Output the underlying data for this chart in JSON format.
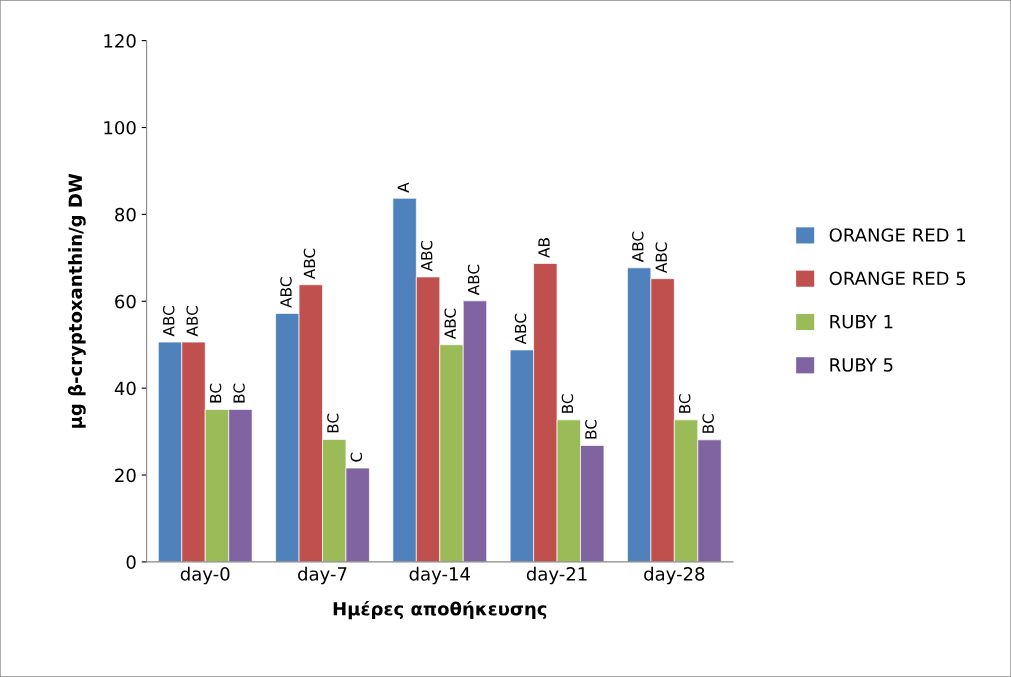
{
  "chart_data": {
    "type": "bar",
    "xlabel": "Ημέρες αποθήκευσης",
    "ylabel": "μg β-cryptoxanthin/g DW",
    "categories": [
      "day-0",
      "day-7",
      "day-14",
      "day-21",
      "day-28"
    ],
    "series": [
      {
        "name": "ORANGE RED 1",
        "color": "#4f81bd",
        "values": [
          50.6,
          57.2,
          83.7,
          48.8,
          67.7
        ],
        "value_labels": [
          "ABC",
          "ABC",
          "A",
          "ABC",
          "ABC"
        ]
      },
      {
        "name": "ORANGE RED 5",
        "color": "#c0504d",
        "values": [
          50.6,
          63.8,
          65.6,
          68.7,
          65.2
        ],
        "value_labels": [
          "ABC",
          "ABC",
          "ABC",
          "AB",
          "ABC"
        ]
      },
      {
        "name": "RUBY 1",
        "color": "#9bbb59",
        "values": [
          35.1,
          28.2,
          50.0,
          32.7,
          32.7
        ],
        "value_labels": [
          "BC",
          "BC",
          "ABC",
          "BC",
          "BC"
        ]
      },
      {
        "name": "RUBY 5",
        "color": "#8064a2",
        "values": [
          35.1,
          21.6,
          60.1,
          26.8,
          28.1
        ],
        "value_labels": [
          "BC",
          "C",
          "ABC",
          "BC",
          "BC"
        ]
      }
    ],
    "ylim": [
      0,
      120
    ],
    "yticks": [
      0,
      20,
      40,
      60,
      80,
      100,
      120
    ],
    "grid": false,
    "legend": "right"
  }
}
